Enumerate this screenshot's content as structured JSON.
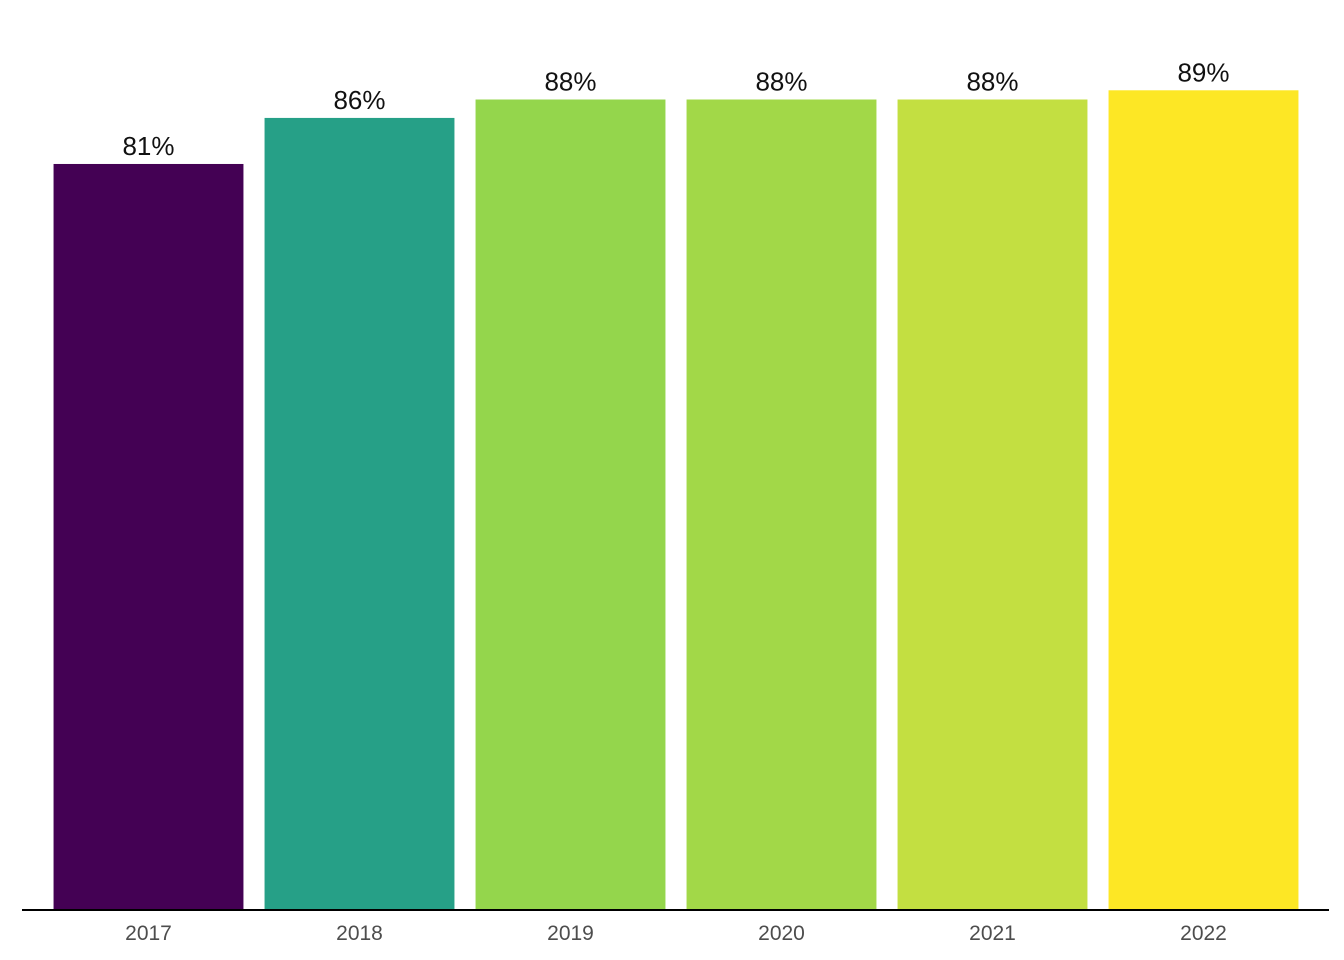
{
  "chart_data": {
    "type": "bar",
    "categories": [
      "2017",
      "2018",
      "2019",
      "2020",
      "2021",
      "2022"
    ],
    "values": [
      81,
      86,
      88,
      88,
      88,
      89
    ],
    "value_labels": [
      "81%",
      "86%",
      "88%",
      "88%",
      "88%",
      "89%"
    ],
    "colors": [
      "#440154",
      "#26A087",
      "#94D64C",
      "#A2D848",
      "#C3DF41",
      "#FDE725"
    ],
    "title": "",
    "xlabel": "",
    "ylabel": "",
    "ylim": [
      0,
      97.5
    ],
    "grid": false,
    "legend": "none"
  }
}
